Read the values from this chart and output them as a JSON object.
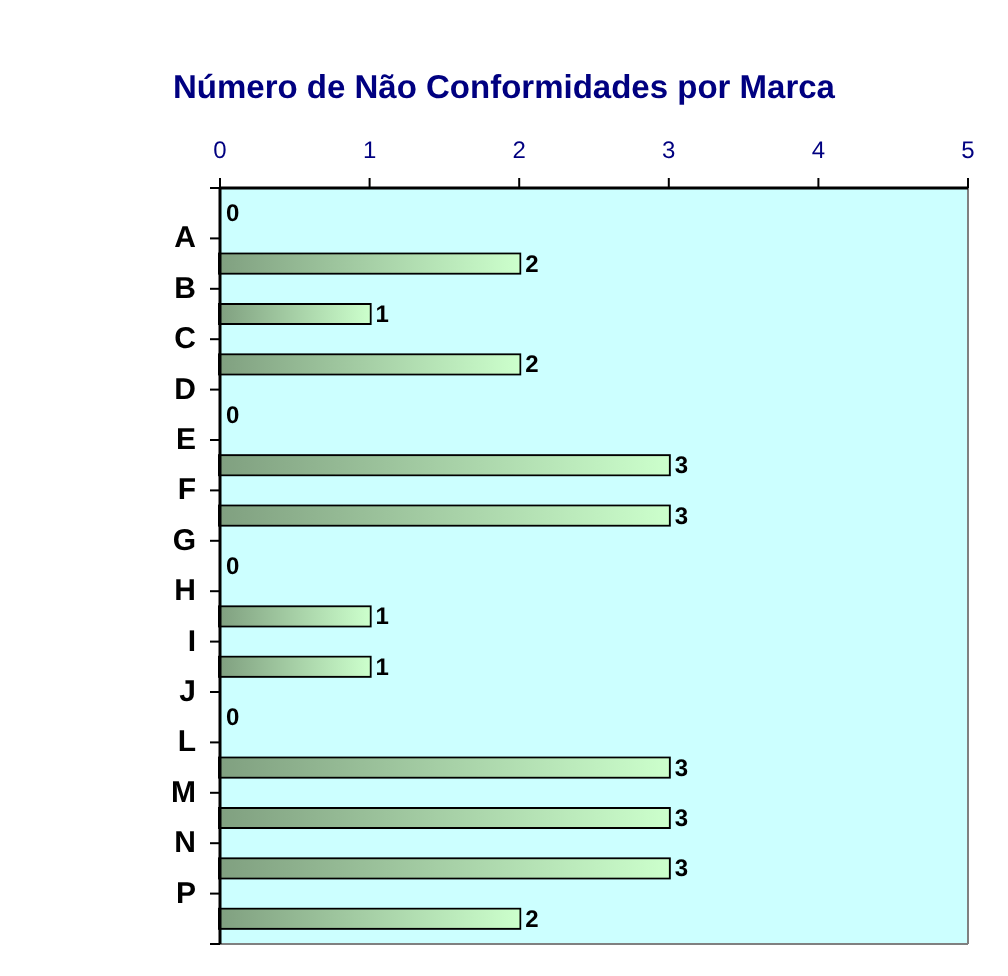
{
  "chart_data": {
    "type": "bar",
    "orientation": "horizontal",
    "title": "Número de Não Conformidades por Marca",
    "categories": [
      null,
      "A",
      "B",
      "C",
      "D",
      "E",
      "F",
      "G",
      "H",
      "I",
      "J",
      "L",
      "M",
      "N",
      "P"
    ],
    "values": [
      0,
      2,
      1,
      2,
      0,
      3,
      3,
      0,
      1,
      1,
      0,
      3,
      3,
      3,
      2
    ],
    "color": "#ccffcc",
    "xlim": [
      0,
      5
    ],
    "xticks": [
      0,
      1,
      2,
      3,
      4,
      5
    ],
    "data_labels": true
  }
}
